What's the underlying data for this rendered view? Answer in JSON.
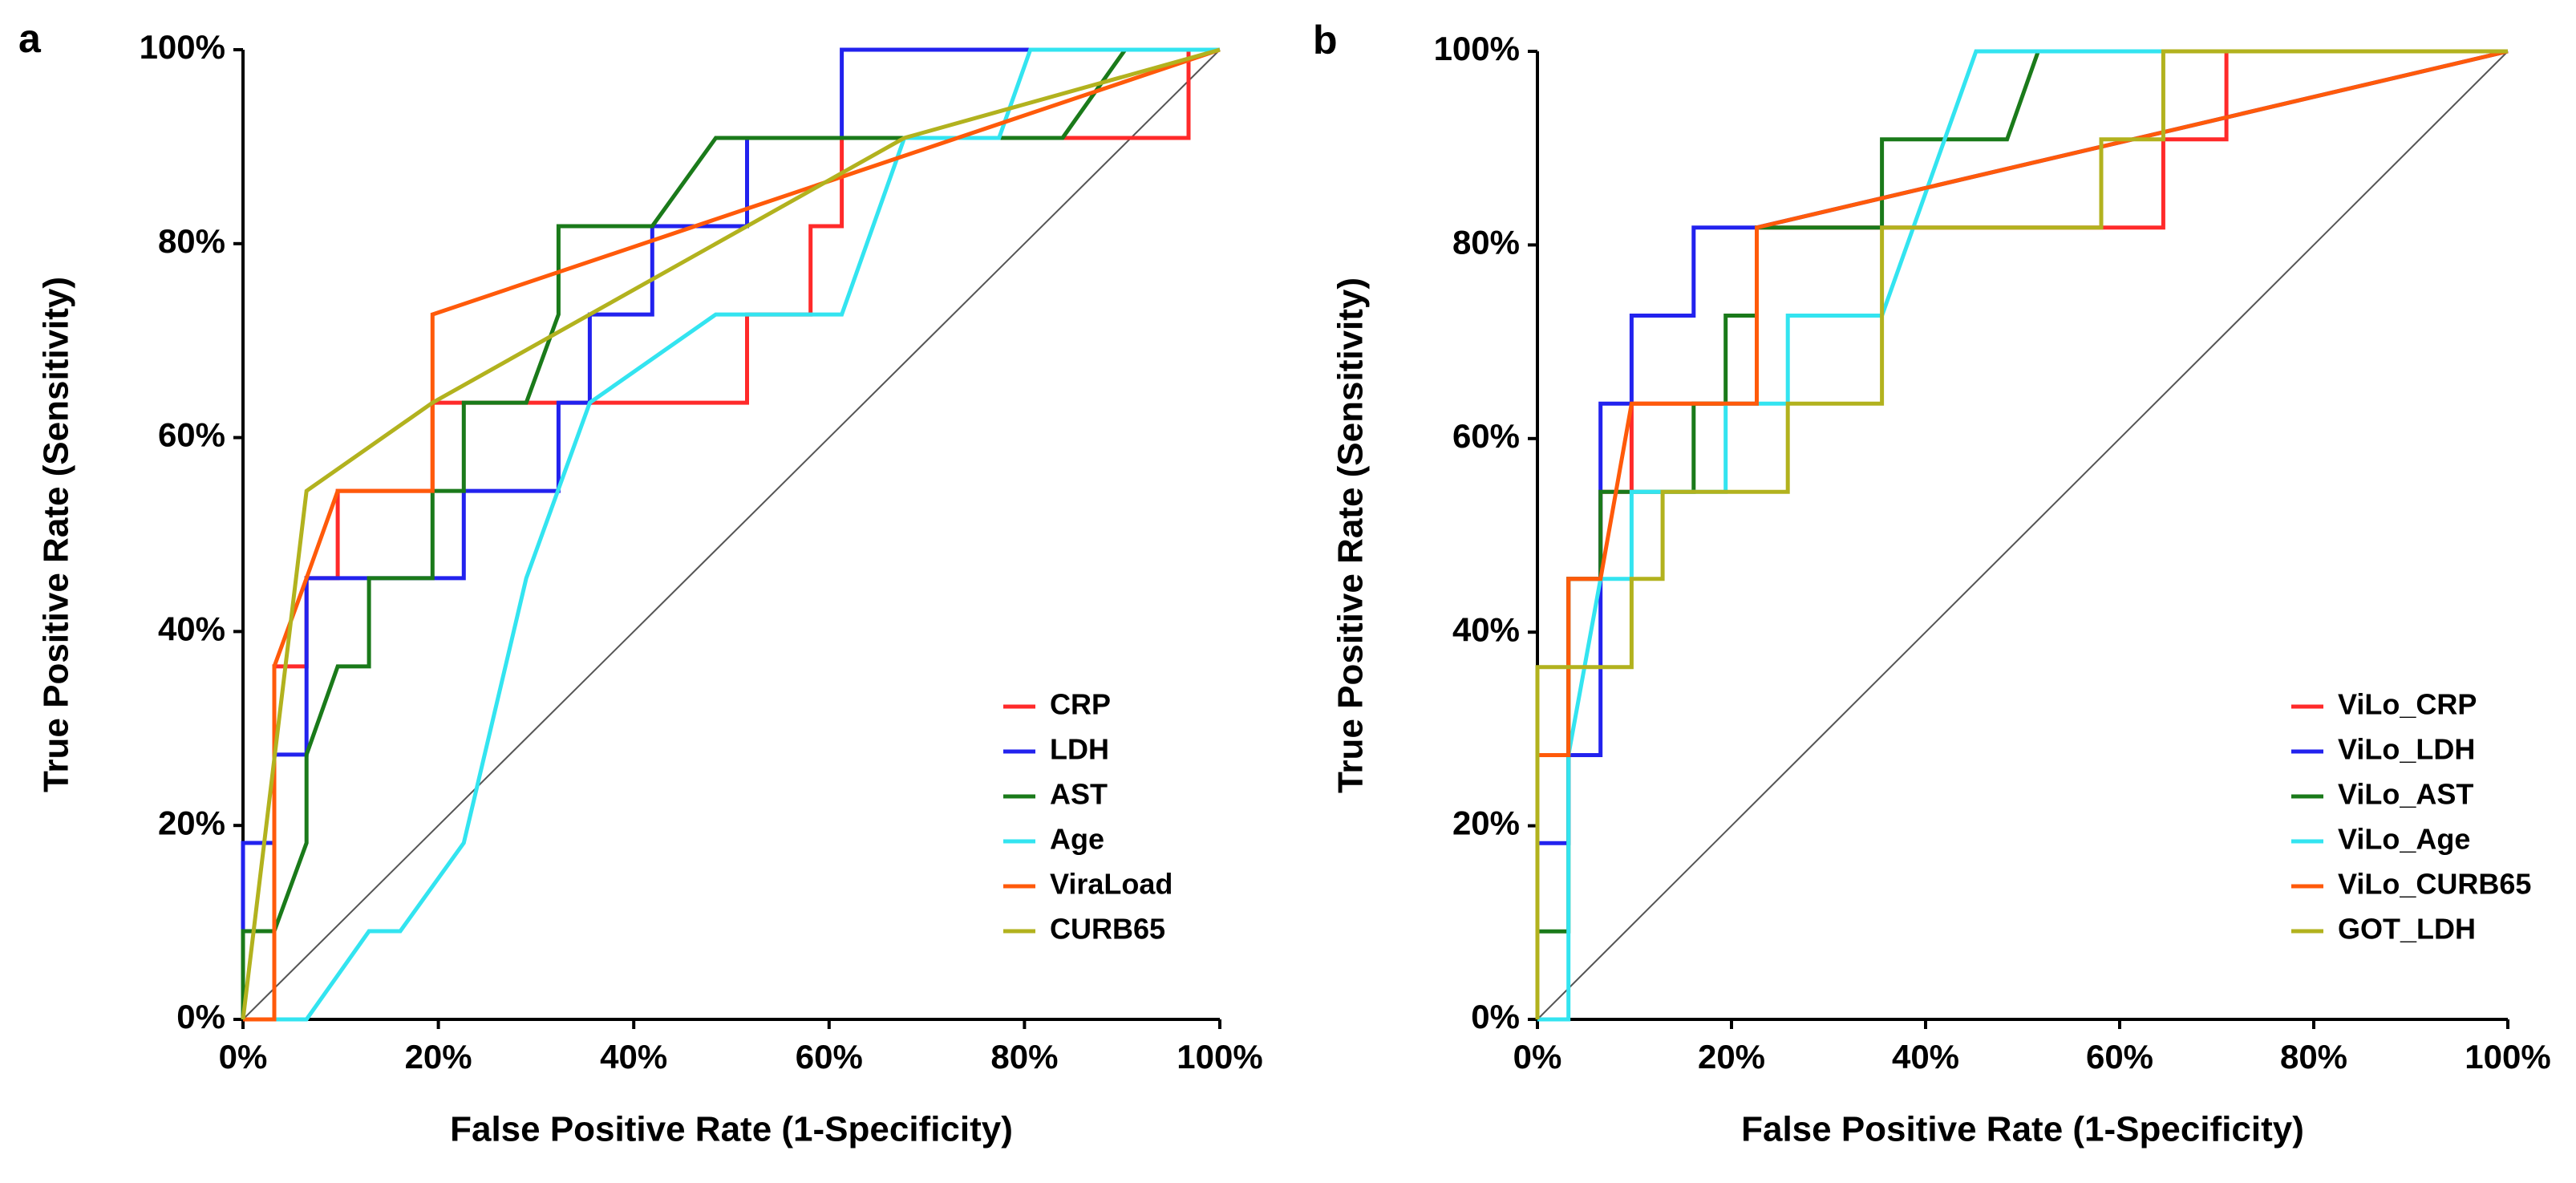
{
  "chart_data": [
    {
      "type": "line",
      "panel_label": "a",
      "xlabel": "False Positive Rate (1-Specificity)",
      "ylabel": "True Positive Rate (Sensitivity)",
      "xlim": [
        0,
        100
      ],
      "ylim": [
        0,
        100
      ],
      "xticks": [
        {
          "value": 0,
          "label": "0%"
        },
        {
          "value": 20,
          "label": "20%"
        },
        {
          "value": 40,
          "label": "40%"
        },
        {
          "value": 60,
          "label": "60%"
        },
        {
          "value": 80,
          "label": "80%"
        },
        {
          "value": 100,
          "label": "100%"
        }
      ],
      "yticks": [
        {
          "value": 0,
          "label": "0%"
        },
        {
          "value": 20,
          "label": "20%"
        },
        {
          "value": 40,
          "label": "40%"
        },
        {
          "value": 60,
          "label": "60%"
        },
        {
          "value": 80,
          "label": "80%"
        },
        {
          "value": 100,
          "label": "100%"
        }
      ],
      "legend": "lower right",
      "series": [
        {
          "name": "CRP",
          "color": "#ff2a2a",
          "x": [
            0,
            3.2,
            3.2,
            6.5,
            6.5,
            9.7,
            9.7,
            19.4,
            19.4,
            51.6,
            51.6,
            58.1,
            58.1,
            61.3,
            61.3,
            96.8,
            96.8,
            100
          ],
          "values": [
            0,
            0,
            36.4,
            36.4,
            45.5,
            45.5,
            54.5,
            54.5,
            63.6,
            63.6,
            72.7,
            72.7,
            81.8,
            81.8,
            90.9,
            90.9,
            100,
            100
          ]
        },
        {
          "name": "LDH",
          "color": "#2222ee",
          "x": [
            0,
            0,
            3.2,
            3.2,
            6.5,
            6.5,
            22.6,
            22.6,
            32.3,
            32.3,
            35.5,
            35.5,
            41.9,
            41.9,
            51.6,
            51.6,
            61.3,
            61.3,
            83.9,
            100
          ],
          "values": [
            0,
            18.2,
            18.2,
            27.3,
            27.3,
            45.5,
            45.5,
            54.5,
            54.5,
            63.6,
            63.6,
            72.7,
            72.7,
            81.8,
            81.8,
            90.9,
            90.9,
            100,
            100,
            100
          ]
        },
        {
          "name": "AST",
          "color": "#1a7a1a",
          "x": [
            0,
            0,
            3.2,
            6.5,
            6.5,
            9.7,
            12.9,
            12.9,
            19.4,
            19.4,
            22.6,
            22.6,
            29,
            32.3,
            32.3,
            41.9,
            48.4,
            83.9,
            90.3,
            100
          ],
          "values": [
            0,
            9.1,
            9.1,
            18.2,
            27.3,
            36.4,
            36.4,
            45.5,
            45.5,
            54.5,
            54.5,
            63.6,
            63.6,
            72.7,
            81.8,
            81.8,
            90.9,
            90.9,
            100,
            100
          ]
        },
        {
          "name": "Age",
          "color": "#33e4f0",
          "x": [
            0,
            6.5,
            12.9,
            16.1,
            22.6,
            29,
            35.5,
            48.4,
            61.3,
            67.7,
            77.4,
            80.6,
            100
          ],
          "values": [
            0,
            0,
            9.1,
            9.1,
            18.2,
            45.5,
            63.6,
            72.7,
            72.7,
            90.9,
            90.9,
            100,
            100
          ]
        },
        {
          "name": "ViraLoad",
          "color": "#ff5a0a",
          "x": [
            0,
            3.2,
            3.2,
            6.5,
            9.7,
            19.4,
            19.4,
            100
          ],
          "values": [
            0,
            0,
            36.4,
            45.5,
            54.5,
            54.5,
            72.7,
            100
          ]
        },
        {
          "name": "CURB65",
          "color": "#b2b21e",
          "x": [
            0,
            6.5,
            19.4,
            67.7,
            100
          ],
          "values": [
            0,
            54.5,
            63.6,
            90.9,
            100
          ]
        }
      ]
    },
    {
      "type": "line",
      "panel_label": "b",
      "xlabel": "False Positive Rate (1-Specificity)",
      "ylabel": "True Positive Rate (Sensitivity)",
      "xlim": [
        0,
        100
      ],
      "ylim": [
        0,
        100
      ],
      "xticks": [
        {
          "value": 0,
          "label": "0%"
        },
        {
          "value": 20,
          "label": "20%"
        },
        {
          "value": 40,
          "label": "40%"
        },
        {
          "value": 60,
          "label": "60%"
        },
        {
          "value": 80,
          "label": "80%"
        },
        {
          "value": 100,
          "label": "100%"
        }
      ],
      "yticks": [
        {
          "value": 0,
          "label": "0%"
        },
        {
          "value": 20,
          "label": "20%"
        },
        {
          "value": 40,
          "label": "40%"
        },
        {
          "value": 60,
          "label": "60%"
        },
        {
          "value": 80,
          "label": "80%"
        },
        {
          "value": 100,
          "label": "100%"
        }
      ],
      "legend": "lower right",
      "series": [
        {
          "name": "ViLo_CRP",
          "color": "#ff2a2a",
          "x": [
            0,
            0,
            3.2,
            3.2,
            6.5,
            6.5,
            9.7,
            9.7,
            22.6,
            22.6,
            58.1,
            64.5,
            64.5,
            71,
            71,
            100
          ],
          "values": [
            0,
            27.3,
            27.3,
            45.5,
            45.5,
            54.5,
            54.5,
            63.6,
            63.6,
            81.8,
            81.8,
            81.8,
            90.9,
            90.9,
            100,
            100
          ]
        },
        {
          "name": "ViLo_LDH",
          "color": "#2222ee",
          "x": [
            0,
            0,
            3.2,
            3.2,
            6.5,
            6.5,
            9.7,
            9.7,
            16.1,
            16.1,
            22.6,
            100
          ],
          "values": [
            0,
            18.2,
            18.2,
            27.3,
            27.3,
            63.6,
            63.6,
            72.7,
            72.7,
            81.8,
            81.8,
            100
          ]
        },
        {
          "name": "ViLo_AST",
          "color": "#1a7a1a",
          "x": [
            0,
            0,
            3.2,
            3.2,
            6.5,
            6.5,
            16.1,
            16.1,
            19.4,
            19.4,
            22.6,
            22.6,
            35.5,
            35.5,
            48.4,
            51.6,
            100
          ],
          "values": [
            0,
            9.1,
            9.1,
            45.5,
            45.5,
            54.5,
            54.5,
            63.6,
            63.6,
            72.7,
            72.7,
            81.8,
            81.8,
            90.9,
            90.9,
            100,
            100
          ]
        },
        {
          "name": "ViLo_Age",
          "color": "#33e4f0",
          "x": [
            0,
            3.2,
            3.2,
            6.5,
            9.7,
            9.7,
            19.4,
            19.4,
            25.8,
            25.8,
            35.5,
            45.2,
            100
          ],
          "values": [
            0,
            0,
            27.3,
            45.5,
            45.5,
            54.5,
            54.5,
            63.6,
            63.6,
            72.7,
            72.7,
            100,
            100
          ]
        },
        {
          "name": "ViLo_CURB65",
          "color": "#ff5a0a",
          "x": [
            0,
            0,
            3.2,
            3.2,
            6.5,
            9.7,
            22.6,
            22.6,
            100
          ],
          "values": [
            0,
            27.3,
            27.3,
            45.5,
            45.5,
            63.6,
            63.6,
            81.8,
            100
          ]
        },
        {
          "name": "GOT_LDH",
          "color": "#b2b21e",
          "x": [
            0,
            0,
            9.7,
            9.7,
            12.9,
            12.9,
            25.8,
            25.8,
            35.5,
            35.5,
            58.1,
            58.1,
            64.5,
            64.5,
            100
          ],
          "values": [
            0,
            36.4,
            36.4,
            45.5,
            45.5,
            54.5,
            54.5,
            63.6,
            63.6,
            81.8,
            81.8,
            90.9,
            90.9,
            100,
            100
          ]
        }
      ]
    }
  ]
}
